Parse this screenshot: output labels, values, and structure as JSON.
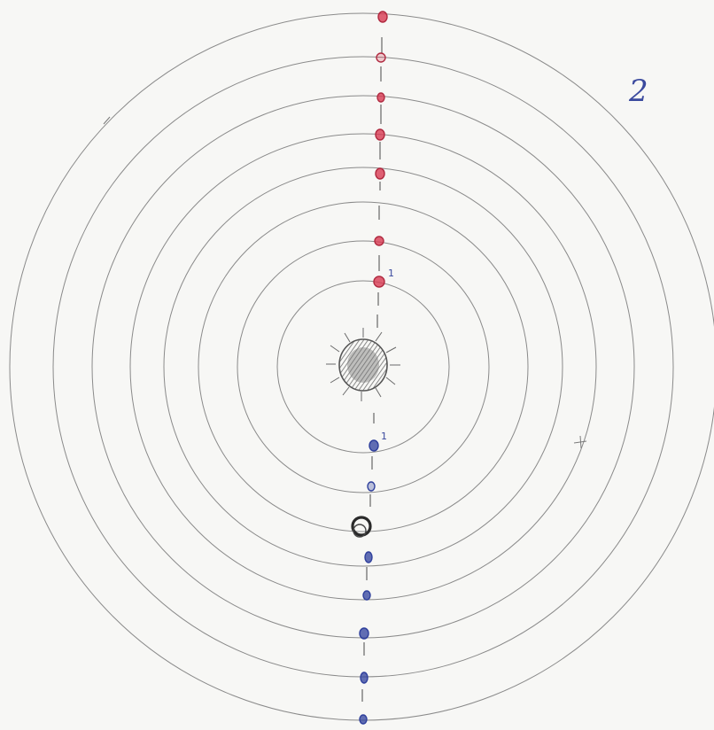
{
  "page_number": "2",
  "orbit_count": 8,
  "labels": {
    "red_innermost": "1",
    "blue_innermost": "1"
  },
  "colors": {
    "paper": "#f7f7f5",
    "pencil": "#8a8a8a",
    "red_marker": "#d83a52",
    "blue_marker": "#2e3f9c",
    "sun": "#777777",
    "black_marker": "#2a2a2a",
    "ink": "#3b4a9e"
  }
}
